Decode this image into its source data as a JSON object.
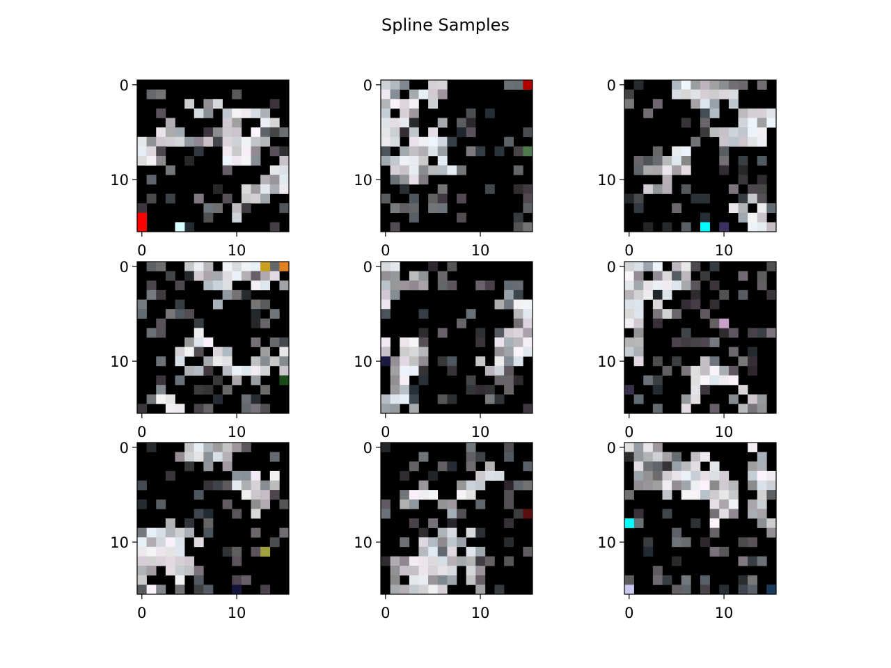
{
  "figure": {
    "title": "Spline Samples"
  },
  "chart_data": {
    "type": "heatmap",
    "title": "Spline Samples",
    "description_kind": "image_grid",
    "grid_rows": 3,
    "grid_cols": 3,
    "image_size": [
      16,
      16
    ],
    "colormap": "rgb",
    "background_color": "#000000",
    "foreground_color": "#f2f2f2",
    "x_ticks": [
      0,
      10
    ],
    "y_ticks": [
      0,
      10
    ],
    "xlim": [
      -0.5,
      15.5
    ],
    "ylim": [
      15.5,
      -0.5
    ],
    "panels": [
      {
        "id": "sample-1",
        "seed": 11,
        "accents": [
          {
            "row": 14,
            "col": 0,
            "color": "#ff0000"
          },
          {
            "row": 15,
            "col": 0,
            "color": "#ff0000"
          },
          {
            "row": 15,
            "col": 4,
            "color": "#d8ffff"
          }
        ]
      },
      {
        "id": "sample-2",
        "seed": 23,
        "accents": [
          {
            "row": 0,
            "col": 15,
            "color": "#b00000"
          },
          {
            "row": 7,
            "col": 15,
            "color": "#4e7a4e"
          }
        ]
      },
      {
        "id": "sample-3",
        "seed": 37,
        "accents": [
          {
            "row": 15,
            "col": 8,
            "color": "#00ffff"
          },
          {
            "row": 15,
            "col": 10,
            "color": "#3c3060"
          }
        ]
      },
      {
        "id": "sample-4",
        "seed": 41,
        "accents": [
          {
            "row": 0,
            "col": 13,
            "color": "#c8a020"
          },
          {
            "row": 0,
            "col": 15,
            "color": "#e08020"
          },
          {
            "row": 12,
            "col": 15,
            "color": "#1a4a1a"
          }
        ]
      },
      {
        "id": "sample-5",
        "seed": 53,
        "accents": [
          {
            "row": 10,
            "col": 0,
            "color": "#1a1a40"
          }
        ]
      },
      {
        "id": "sample-6",
        "seed": 67,
        "accents": [
          {
            "row": 6,
            "col": 10,
            "color": "#c8a0c8"
          },
          {
            "row": 13,
            "col": 0,
            "color": "#3a304a"
          }
        ]
      },
      {
        "id": "sample-7",
        "seed": 71,
        "accents": [
          {
            "row": 15,
            "col": 10,
            "color": "#14143c"
          },
          {
            "row": 11,
            "col": 13,
            "color": "#a0a040"
          }
        ]
      },
      {
        "id": "sample-8",
        "seed": 83,
        "accents": [
          {
            "row": 7,
            "col": 15,
            "color": "#5a1010"
          }
        ]
      },
      {
        "id": "sample-9",
        "seed": 97,
        "accents": [
          {
            "row": 8,
            "col": 0,
            "color": "#00ffff"
          },
          {
            "row": 15,
            "col": 0,
            "color": "#c8c8f0"
          },
          {
            "row": 15,
            "col": 15,
            "color": "#1a3a5a"
          }
        ]
      }
    ]
  }
}
